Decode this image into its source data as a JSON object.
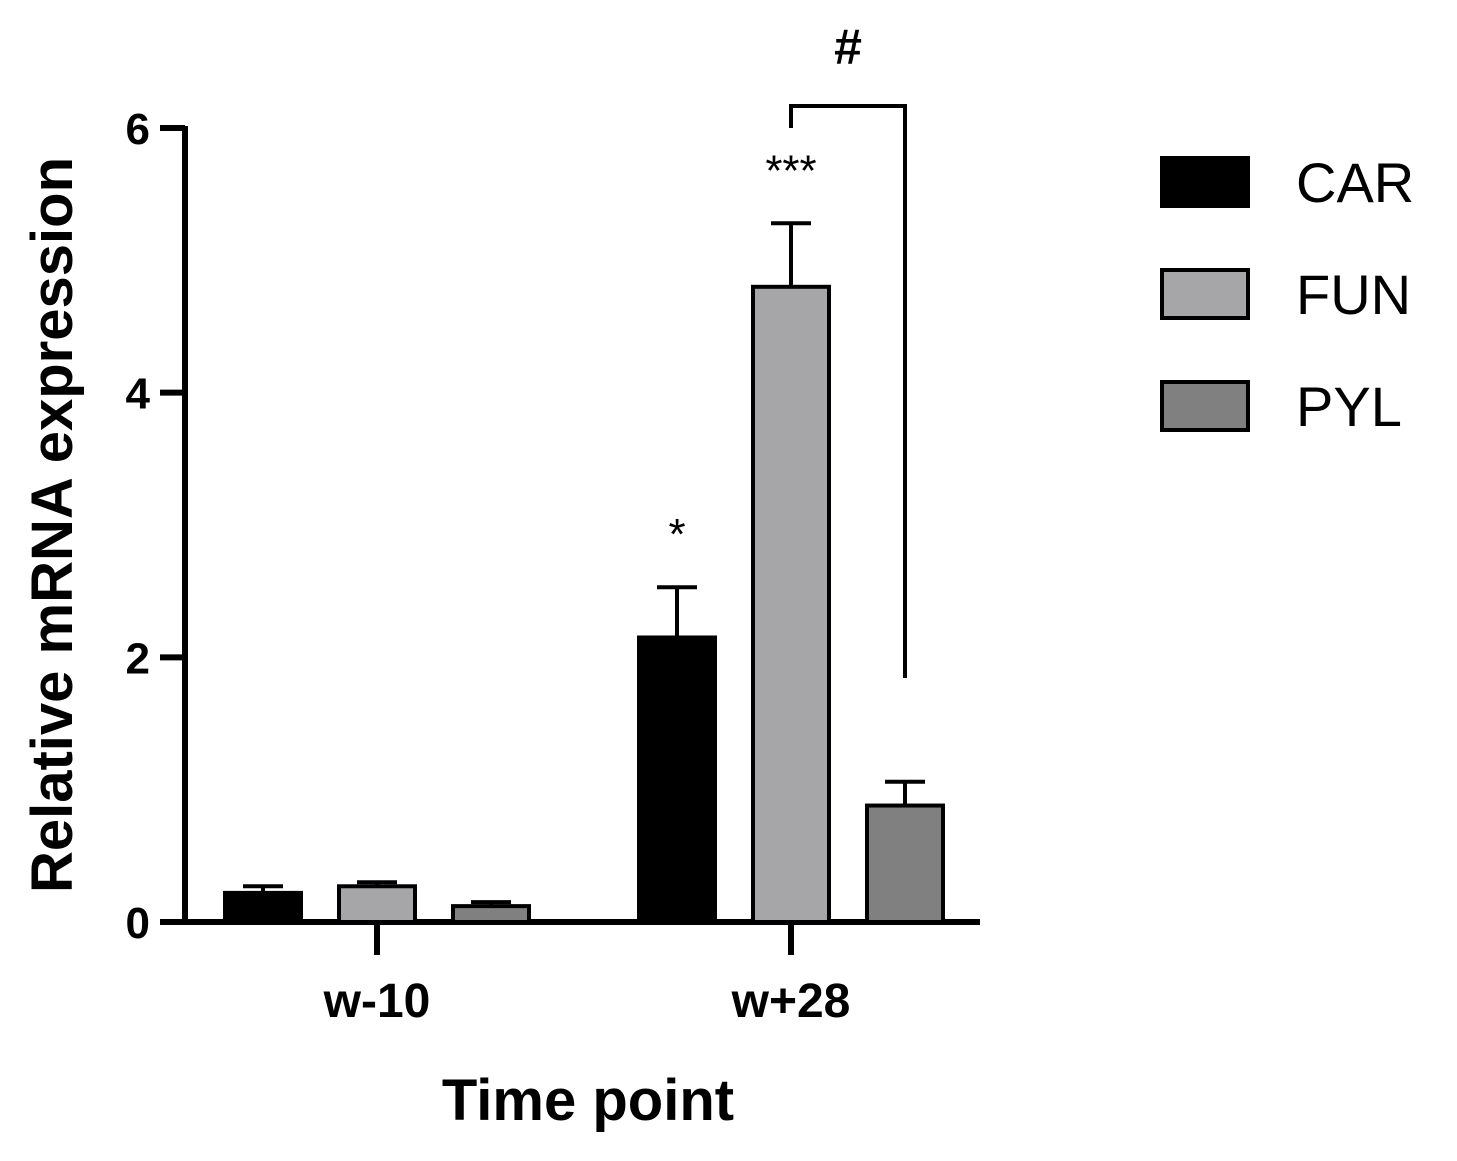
{
  "chart_data": {
    "type": "bar",
    "xlabel": "Time point",
    "ylabel": "Relative mRNA expression",
    "ylim": [
      0,
      6
    ],
    "yticks": [
      0,
      2,
      4,
      6
    ],
    "categories": [
      "w-10",
      "w+28"
    ],
    "series": [
      {
        "name": "CAR",
        "color": "#000000",
        "values": [
          0.22,
          2.15
        ],
        "errors": [
          0.05,
          0.38
        ]
      },
      {
        "name": "FUN",
        "color": "#a6a6a8",
        "values": [
          0.27,
          4.8
        ],
        "errors": [
          0.03,
          0.48
        ]
      },
      {
        "name": "PYL",
        "color": "#808080",
        "values": [
          0.12,
          0.88
        ],
        "errors": [
          0.03,
          0.18
        ]
      }
    ],
    "annotations": [
      {
        "text": "*",
        "category": "w+28",
        "series": "CAR"
      },
      {
        "text": "***",
        "category": "w+28",
        "series": "FUN"
      }
    ],
    "brackets": [
      {
        "text": "#",
        "category": "w+28",
        "from": "FUN",
        "to": "PYL"
      }
    ],
    "legend": "right",
    "grid": false
  }
}
